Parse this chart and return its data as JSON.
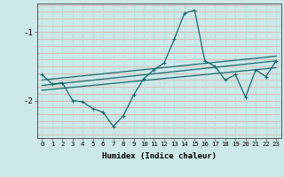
{
  "xlabel": "Humidex (Indice chaleur)",
  "bg_color": "#cce8e8",
  "line_color": "#1a6b6b",
  "grid_color_h": "#e8b0b0",
  "grid_color_v": "#b8dede",
  "xlim": [
    -0.5,
    23.5
  ],
  "ylim": [
    -2.55,
    -0.58
  ],
  "yticks": [
    -2,
    -1
  ],
  "xticks": [
    0,
    1,
    2,
    3,
    4,
    5,
    6,
    7,
    8,
    9,
    10,
    11,
    12,
    13,
    14,
    15,
    16,
    17,
    18,
    19,
    20,
    21,
    22,
    23
  ],
  "line1_x": [
    0,
    1,
    2,
    3,
    4,
    5,
    6,
    7,
    8,
    9,
    10,
    11,
    12,
    13,
    14,
    15,
    16,
    17,
    18,
    19,
    20,
    21,
    22,
    23
  ],
  "line1_y": [
    -1.62,
    -1.76,
    -1.74,
    -2.0,
    -2.02,
    -2.12,
    -2.17,
    -2.38,
    -2.22,
    -1.92,
    -1.68,
    -1.55,
    -1.45,
    -1.1,
    -0.72,
    -0.68,
    -1.42,
    -1.5,
    -1.7,
    -1.62,
    -1.95,
    -1.55,
    -1.65,
    -1.42
  ],
  "line2_x": [
    0,
    23
  ],
  "line2_y": [
    -1.78,
    -1.42
  ],
  "line3_x": [
    0,
    23
  ],
  "line3_y": [
    -1.85,
    -1.52
  ],
  "line4_x": [
    0,
    23
  ],
  "line4_y": [
    -1.7,
    -1.35
  ]
}
